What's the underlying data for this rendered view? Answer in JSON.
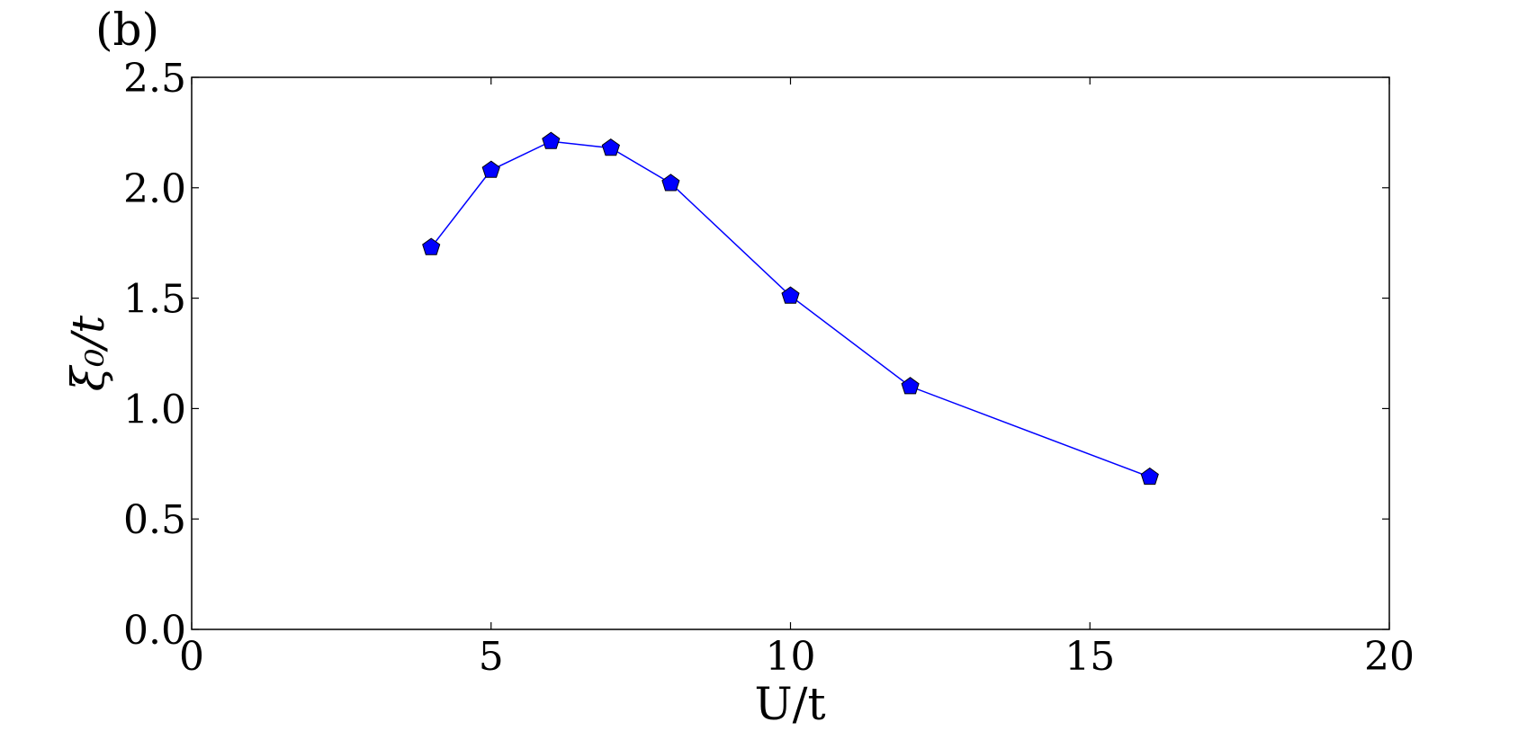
{
  "chart_data": {
    "type": "line",
    "panel_label": "(b)",
    "xlabel": "U/t",
    "ylabel": "ξ₀/t",
    "x": [
      4,
      5,
      6,
      7,
      8,
      10,
      12,
      16
    ],
    "series": [
      {
        "color": "#0000ff",
        "values": [
          1.73,
          2.08,
          2.21,
          2.18,
          2.02,
          1.51,
          1.1,
          0.69
        ]
      }
    ],
    "xlim": [
      0,
      20
    ],
    "xticks": [
      0,
      5,
      10,
      15,
      20
    ],
    "ylim": [
      0,
      2.5
    ],
    "yticks": [
      {
        "value": 0,
        "label": "0.0"
      },
      {
        "value": 0.5,
        "label": "0.5"
      },
      {
        "value": 1,
        "label": "1.0"
      },
      {
        "value": 1.5,
        "label": "1.5"
      },
      {
        "value": 2,
        "label": "2.0"
      },
      {
        "value": 2.5,
        "label": "2.5"
      }
    ],
    "marker": "pentagon"
  }
}
